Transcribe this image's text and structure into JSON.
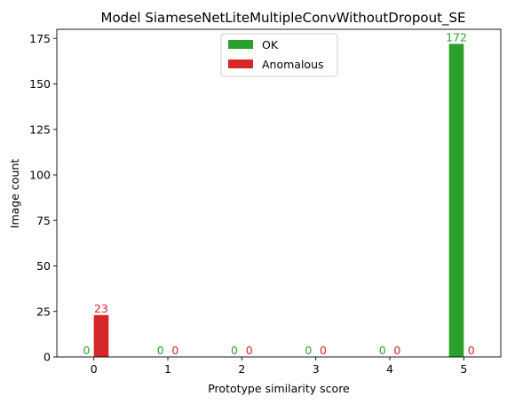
{
  "chart_data": {
    "type": "bar",
    "title": "Model SiameseNetLiteMultipleConvWithoutDropout_SE",
    "xlabel": "Prototype similarity score",
    "ylabel": "Image count",
    "categories": [
      "0",
      "1",
      "2",
      "3",
      "4",
      "5"
    ],
    "x": [
      0,
      1,
      2,
      3,
      4,
      5
    ],
    "xlim": [
      -0.5,
      5.5
    ],
    "ylim": [
      0,
      180
    ],
    "yticks": [
      0,
      25,
      50,
      75,
      100,
      125,
      150,
      175
    ],
    "grid": false,
    "legend_position": "top-center",
    "series": [
      {
        "name": "OK",
        "color": "#2ca02c",
        "values": [
          0,
          0,
          0,
          0,
          0,
          172
        ],
        "labels": [
          "0",
          "0",
          "0",
          "0",
          "0",
          "172"
        ]
      },
      {
        "name": "Anomalous",
        "color": "#d62728",
        "values": [
          23,
          0,
          0,
          0,
          0,
          0
        ],
        "labels": [
          "23",
          "0",
          "0",
          "0",
          "0",
          "0"
        ]
      }
    ]
  }
}
